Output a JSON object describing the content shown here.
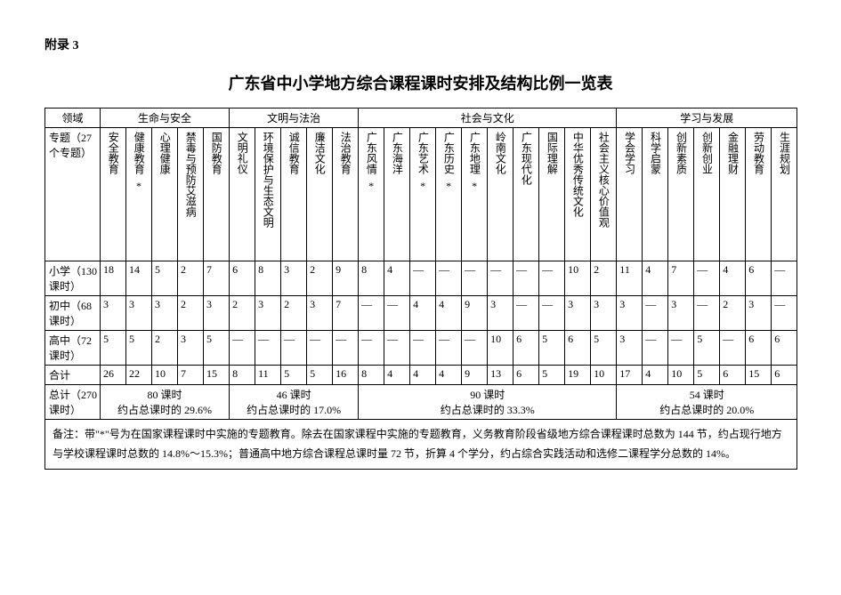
{
  "appendix": "附录 3",
  "title": "广东省中小学地方综合课程课时安排及结构比例一览表",
  "headers": {
    "domain_label": "领域",
    "domains": [
      "生命与安全",
      "文明与法治",
      "社会与文化",
      "学习与发展"
    ],
    "topic_label": "专题（27个专题）"
  },
  "topics": [
    {
      "name": "安全教育",
      "star": false
    },
    {
      "name": "健康教育",
      "star": true
    },
    {
      "name": "心理健康",
      "star": false
    },
    {
      "name": "禁毒与预防艾滋病",
      "star": false
    },
    {
      "name": "国防教育",
      "star": false
    },
    {
      "name": "文明礼仪",
      "star": false
    },
    {
      "name": "环境保护与生态文明",
      "star": false
    },
    {
      "name": "诚信教育",
      "star": false
    },
    {
      "name": "廉洁文化",
      "star": false
    },
    {
      "name": "法治教育",
      "star": false
    },
    {
      "name": "广东风情",
      "star": true
    },
    {
      "name": "广东海洋",
      "star": false
    },
    {
      "name": "广东艺术",
      "star": true
    },
    {
      "name": "广东历史",
      "star": true
    },
    {
      "name": "广东地理",
      "star": true
    },
    {
      "name": "岭南文化",
      "star": false
    },
    {
      "name": "广东现代化",
      "star": false
    },
    {
      "name": "国际理解",
      "star": false
    },
    {
      "name": "中华优秀传统文化",
      "star": false
    },
    {
      "name": "社会主义核心价值观",
      "star": false
    },
    {
      "name": "学会学习",
      "star": false
    },
    {
      "name": "科学启蒙",
      "star": false
    },
    {
      "name": "创新素质",
      "star": false
    },
    {
      "name": "创新创业",
      "star": false
    },
    {
      "name": "金融理财",
      "star": false
    },
    {
      "name": "劳动教育",
      "star": false
    },
    {
      "name": "生涯规划",
      "star": false
    }
  ],
  "rows": [
    {
      "label": "小学（130课时）",
      "values": [
        "18",
        "14",
        "5",
        "2",
        "7",
        "6",
        "8",
        "3",
        "2",
        "9",
        "8",
        "4",
        "—",
        "—",
        "—",
        "—",
        "—",
        "—",
        "10",
        "2",
        "11",
        "4",
        "7",
        "—",
        "4",
        "6",
        "—"
      ]
    },
    {
      "label": "初中（68课时）",
      "values": [
        "3",
        "3",
        "3",
        "2",
        "3",
        "2",
        "3",
        "2",
        "3",
        "7",
        "—",
        "—",
        "4",
        "4",
        "9",
        "3",
        "—",
        "—",
        "3",
        "3",
        "3",
        "—",
        "3",
        "—",
        "2",
        "3",
        "—"
      ]
    },
    {
      "label": "高中（72课时）",
      "values": [
        "5",
        "5",
        "2",
        "3",
        "5",
        "—",
        "—",
        "—",
        "—",
        "—",
        "—",
        "—",
        "—",
        "—",
        "—",
        "10",
        "6",
        "5",
        "6",
        "5",
        "3",
        "—",
        "—",
        "5",
        "—",
        "6",
        "6"
      ]
    },
    {
      "label": "合计",
      "values": [
        "26",
        "22",
        "10",
        "7",
        "15",
        "8",
        "11",
        "5",
        "5",
        "16",
        "8",
        "4",
        "4",
        "4",
        "9",
        "13",
        "6",
        "5",
        "19",
        "10",
        "17",
        "4",
        "10",
        "5",
        "6",
        "15",
        "6"
      ]
    }
  ],
  "summary": {
    "total_label": "总计（270课时）",
    "groups": [
      {
        "line1": "80 课时",
        "line2": "约占总课时的 29.6%"
      },
      {
        "line1": "46 课时",
        "line2": "约占总课时的 17.0%"
      },
      {
        "line1": "90 课时",
        "line2": "约占总课时的 33.3%"
      },
      {
        "line1": "54 课时",
        "line2": "约占总课时的 20.0%"
      }
    ]
  },
  "note": "备注：带\"*\"号为在国家课程课时中实施的专题教育。除去在国家课程中实施的专题教育，义务教育阶段省级地方综合课程课时总数为 144 节，约占现行地方与学校课程课时总数的 14.8%～15.3%；普通高中地方综合课程总课时量 72 节，折算 4 个学分，约占综合实践活动和选修二课程学分总数的 14%。"
}
